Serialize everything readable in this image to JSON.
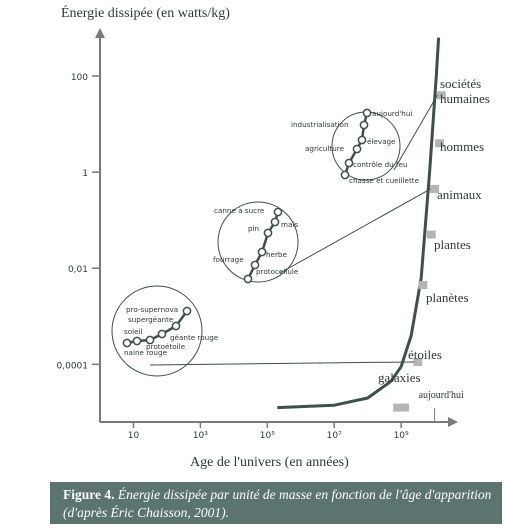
{
  "chart_data": {
    "type": "line",
    "ylabel": "Énergie dissipée (en watts/kg)",
    "xlabel": "Age de l'univers (en années)",
    "x_scale": "log",
    "y_scale": "log",
    "xlim_exp": [
      0,
      10.7
    ],
    "ylim_exp": [
      -5.2,
      3
    ],
    "x_ticks": [
      {
        "label": "10",
        "exp": 1
      },
      {
        "label": "10³",
        "exp": 3
      },
      {
        "label": "10⁵",
        "exp": 5
      },
      {
        "label": "10⁷",
        "exp": 7
      },
      {
        "label": "10⁹",
        "exp": 9
      }
    ],
    "y_ticks": [
      {
        "label": "100",
        "exp": 2
      },
      {
        "label": "1",
        "exp": 0
      },
      {
        "label": "0,01",
        "exp": -2
      },
      {
        "label": "0,0001",
        "exp": -4
      }
    ],
    "now_label": "aujourd'hui",
    "curve": {
      "name": "",
      "x_exp": [
        5.3,
        7.0,
        8.0,
        8.7,
        9.0,
        9.3,
        9.6,
        9.85,
        10.0,
        10.05,
        10.12
      ],
      "y_exp": [
        -4.9,
        -4.85,
        -4.7,
        -4.35,
        -4.05,
        -3.4,
        -2.2,
        0.0,
        1.5,
        2.0,
        2.8
      ]
    },
    "stages": [
      {
        "label": "galaxies",
        "x_exp": 9.0,
        "y_exp": -4.9
      },
      {
        "label": "étoiles",
        "x_exp": 9.5,
        "y_exp": -3.95
      },
      {
        "label": "planètes",
        "x_exp": 9.65,
        "y_exp": -2.35
      },
      {
        "label": "plantes",
        "x_exp": 9.9,
        "y_exp": -1.3
      },
      {
        "label": "animaux",
        "x_exp": 10.0,
        "y_exp": -0.35
      },
      {
        "label": "hommes",
        "x_exp": 10.15,
        "y_exp": 0.6
      },
      {
        "label": "sociétés humaines",
        "x_exp": 10.2,
        "y_exp": 1.6
      }
    ],
    "insets": [
      {
        "points": [
          {
            "label": "naine rouge"
          },
          {
            "label": "protoétoile"
          },
          {
            "label": "soleil"
          },
          {
            "label": "géante rouge"
          },
          {
            "label": "supergéante"
          },
          {
            "label": "pro-supernova"
          }
        ]
      },
      {
        "points": [
          {
            "label": "protocellule"
          },
          {
            "label": "fourrage"
          },
          {
            "label": "herbe"
          },
          {
            "label": "pin"
          },
          {
            "label": "maïs"
          },
          {
            "label": "canne à sucre"
          }
        ]
      },
      {
        "points": [
          {
            "label": "chasse et cueillette"
          },
          {
            "label": "contrôle du feu"
          },
          {
            "label": "agriculture"
          },
          {
            "label": "élevage"
          },
          {
            "label": "industrialisation"
          },
          {
            "label": "aujourd'hui"
          }
        ]
      }
    ]
  },
  "caption": {
    "figure_label": "Figure 4.",
    "text": "Énergie dissipée par unité de masse en fonction de l'âge d'apparition (d'après Éric Chaisson, 2001)."
  },
  "colors": {
    "axis": "#7a7a7a",
    "curve": "#3e4f4c",
    "marker": "#b5b5b5",
    "caption_bg": "#5b7470",
    "text": "#2e3a37"
  }
}
